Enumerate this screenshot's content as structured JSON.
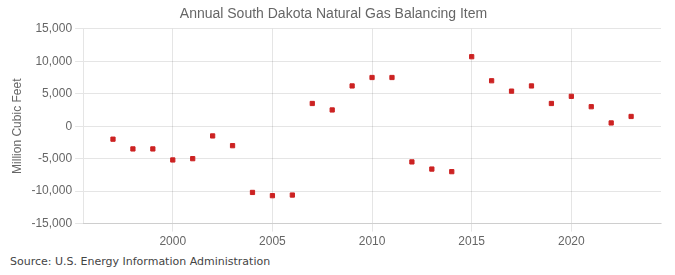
{
  "chart_data": {
    "type": "scatter",
    "title": "Annual South Dakota Natural Gas Balancing Item",
    "ylabel": "Million Cubic Feet",
    "annotations": [
      "Source: U.S. Energy Information Administration"
    ],
    "x": [
      1997,
      1998,
      1999,
      2000,
      2001,
      2002,
      2003,
      2004,
      2005,
      2006,
      2007,
      2008,
      2009,
      2010,
      2011,
      2012,
      2013,
      2014,
      2015,
      2016,
      2017,
      2018,
      2019,
      2020,
      2021,
      2022,
      2023
    ],
    "values": [
      -2000,
      -3500,
      -3500,
      -5200,
      -5000,
      -1500,
      -3000,
      -10200,
      -10700,
      -10600,
      3500,
      2500,
      6200,
      7500,
      7500,
      -5500,
      -6600,
      -7000,
      10700,
      7000,
      5400,
      6200,
      3500,
      4600,
      3000,
      500,
      1500
    ],
    "color": "#cc2222",
    "marker": "square",
    "xlim": [
      1995.5,
      2024.5
    ],
    "xticks": [
      2000,
      2005,
      2010,
      2015,
      2020
    ],
    "ylim": [
      -15000,
      15000
    ],
    "yticks": [
      {
        "value": -15000,
        "label": "-15,000"
      },
      {
        "value": -10000,
        "label": "-10,000"
      },
      {
        "value": -5000,
        "label": "-5,000"
      },
      0,
      {
        "value": 5000,
        "label": "5,000"
      },
      {
        "value": 10000,
        "label": "10,000"
      },
      {
        "value": 15000,
        "label": "15,000"
      }
    ],
    "grid": true
  }
}
